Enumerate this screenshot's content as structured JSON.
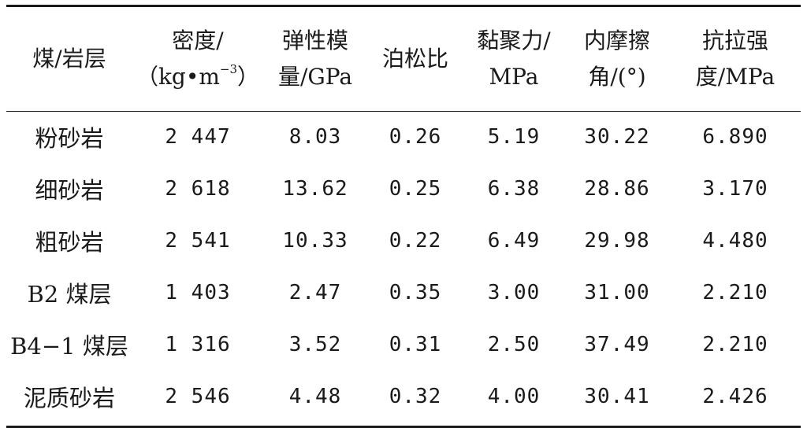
{
  "table": {
    "headers": [
      {
        "lines": [
          "煤/岩层"
        ]
      },
      {
        "lines": [
          "密度/",
          "（kg•m"
        ],
        "sup": "−3",
        "tail": "）"
      },
      {
        "lines": [
          "弹性模",
          "量/GPa"
        ]
      },
      {
        "lines": [
          "泊松比"
        ]
      },
      {
        "lines": [
          "黏聚力/",
          "MPa"
        ]
      },
      {
        "lines": [
          "内摩擦",
          "角/(°)"
        ]
      },
      {
        "lines": [
          "抗拉强",
          "度/MPa"
        ]
      }
    ],
    "rows": [
      [
        "粉砂岩",
        "2 447",
        "8.03",
        "0.26",
        "5.19",
        "30.22",
        "6.890"
      ],
      [
        "细砂岩",
        "2 618",
        "13.62",
        "0.25",
        "6.38",
        "28.86",
        "3.170"
      ],
      [
        "粗砂岩",
        "2 541",
        "10.33",
        "0.22",
        "6.49",
        "29.98",
        "4.480"
      ],
      [
        "B2 煤层",
        "1 403",
        "2.47",
        "0.35",
        "3.00",
        "31.00",
        "2.210"
      ],
      [
        "B4−1 煤层",
        "1 316",
        "3.52",
        "0.31",
        "2.50",
        "37.49",
        "2.210"
      ],
      [
        "泥质砂岩",
        "2 546",
        "4.48",
        "0.32",
        "4.00",
        "30.41",
        "2.426"
      ]
    ]
  }
}
